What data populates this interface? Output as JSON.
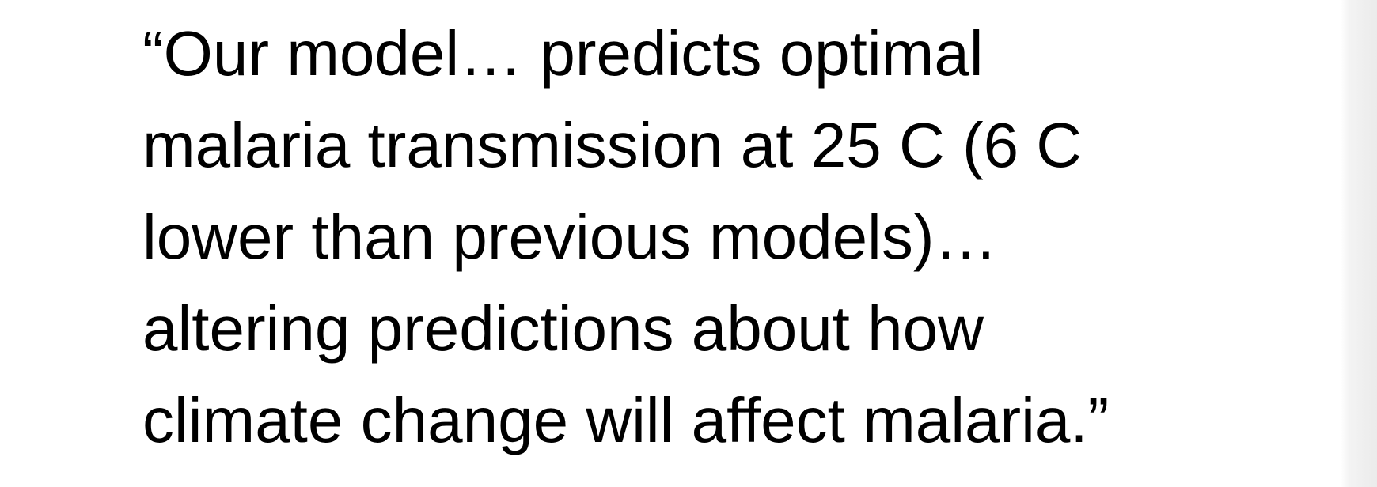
{
  "slide": {
    "quote_lines": [
      "“Our model… predicts optimal",
      "malaria transmission at 25 C (6 C",
      "lower than previous models)…",
      "altering predictions about how",
      "climate change will affect malaria.”"
    ]
  },
  "colors": {
    "text": "#000000",
    "background": "#ffffff",
    "edge_shadow": "#ebebeb"
  }
}
